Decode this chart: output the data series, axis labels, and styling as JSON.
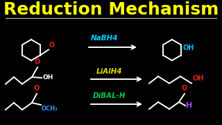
{
  "title": "Reduction Mechanism",
  "title_color": "#ffff00",
  "bg_color": "#000000",
  "line_color": "#ffffff",
  "reagent1": "NaBH4",
  "reagent2": "LiAlH4",
  "reagent3": "DiBAL-H",
  "reagent1_color": "#00ccff",
  "reagent2_color": "#dddd00",
  "reagent3_color": "#00cc44",
  "red_color": "#dd2222",
  "blue_color": "#3399ff",
  "purple_color": "#aa44ff",
  "oh_color1": "#00bbff",
  "oh_color2": "#dd2222",
  "oh_color3": "#dd2222",
  "separator_color": "#aaaaaa"
}
